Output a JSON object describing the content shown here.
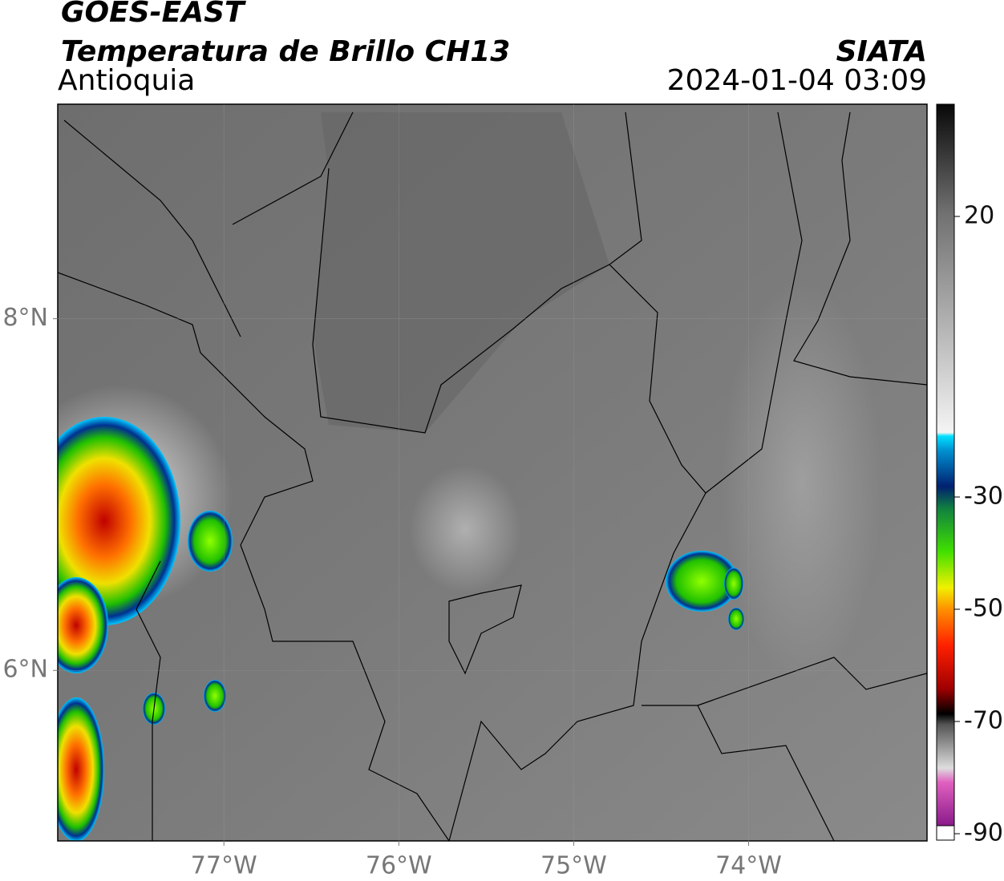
{
  "header": {
    "title": "GOES-EAST",
    "subtitle": "Temperatura de Brillo CH13",
    "region": "Antioquia",
    "source": "SIATA",
    "timestamp": "2024-01-04 03:09"
  },
  "map": {
    "xlim": [
      -77.95,
      -72.98
    ],
    "ylim": [
      5.03,
      9.22
    ],
    "xticks": [
      {
        "value": -77,
        "label": "77°W"
      },
      {
        "value": -76,
        "label": "76°W"
      },
      {
        "value": -75,
        "label": "75°W"
      },
      {
        "value": -74,
        "label": "74°W"
      }
    ],
    "yticks": [
      {
        "value": 6,
        "label": "6°N"
      },
      {
        "value": 8,
        "label": "8°N"
      }
    ]
  },
  "colorbar": {
    "ylim": [
      -90,
      40
    ],
    "yticks": [
      -90,
      -70,
      -50,
      -30,
      20
    ]
  }
}
